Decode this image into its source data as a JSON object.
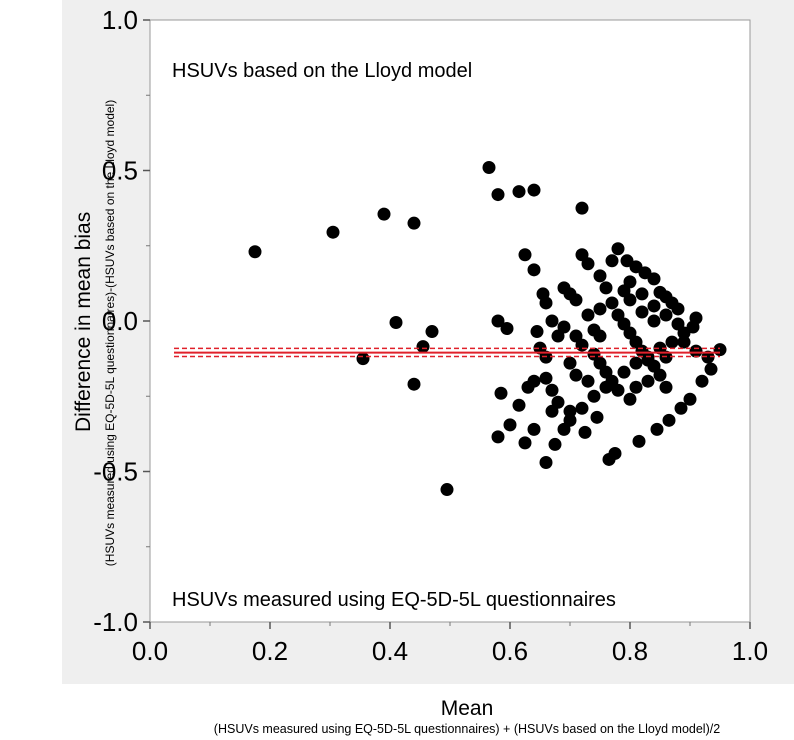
{
  "chart_data": {
    "type": "scatter",
    "title": "",
    "xlabel": "Mean",
    "xlabel_sub": "(HSUVs measured using EQ-5D-5L questionnaires) + (HSUVs based on the Lloyd model)/2",
    "ylabel": "Difference in mean bias",
    "ylabel_sub": "(HSUVs measured using EQ-5D-5L questionnaires)-(HSUVs based on the Lloyd model)",
    "xlim": [
      0.0,
      1.0
    ],
    "ylim": [
      -1.0,
      1.0
    ],
    "xticks": [
      "0.0",
      "0.2",
      "0.4",
      "0.6",
      "0.8",
      "1.0"
    ],
    "yticks": [
      "1.0",
      "0.5",
      "0.0",
      "-0.5",
      "-1.0"
    ],
    "annotations": [
      "HSUVs based on the Lloyd model",
      "HSUVs measured using EQ-5D-5L questionnaires"
    ],
    "mean_line": {
      "value": -0.105,
      "ci": [
        -0.118,
        -0.091
      ],
      "color": "#e0202a"
    },
    "point_color": "#000000",
    "points": [
      [
        0.175,
        0.23
      ],
      [
        0.305,
        0.295
      ],
      [
        0.39,
        0.355
      ],
      [
        0.44,
        0.325
      ],
      [
        0.355,
        -0.125
      ],
      [
        0.41,
        -0.005
      ],
      [
        0.455,
        -0.085
      ],
      [
        0.47,
        -0.035
      ],
      [
        0.44,
        -0.21
      ],
      [
        0.495,
        -0.56
      ],
      [
        0.565,
        0.51
      ],
      [
        0.58,
        0.42
      ],
      [
        0.615,
        0.43
      ],
      [
        0.64,
        0.435
      ],
      [
        0.72,
        0.375
      ],
      [
        0.58,
        0.0
      ],
      [
        0.595,
        -0.025
      ],
      [
        0.625,
        0.22
      ],
      [
        0.64,
        0.17
      ],
      [
        0.655,
        0.09
      ],
      [
        0.66,
        0.06
      ],
      [
        0.585,
        -0.24
      ],
      [
        0.615,
        -0.28
      ],
      [
        0.63,
        -0.22
      ],
      [
        0.64,
        -0.2
      ],
      [
        0.645,
        -0.035
      ],
      [
        0.65,
        -0.09
      ],
      [
        0.58,
        -0.385
      ],
      [
        0.6,
        -0.345
      ],
      [
        0.625,
        -0.405
      ],
      [
        0.64,
        -0.36
      ],
      [
        0.66,
        -0.47
      ],
      [
        0.675,
        -0.41
      ],
      [
        0.66,
        -0.19
      ],
      [
        0.67,
        -0.3
      ],
      [
        0.68,
        -0.27
      ],
      [
        0.69,
        -0.36
      ],
      [
        0.7,
        -0.33
      ],
      [
        0.69,
        0.11
      ],
      [
        0.7,
        0.09
      ],
      [
        0.71,
        0.07
      ],
      [
        0.72,
        0.22
      ],
      [
        0.73,
        0.19
      ],
      [
        0.75,
        0.15
      ],
      [
        0.77,
        0.2
      ],
      [
        0.78,
        0.24
      ],
      [
        0.795,
        0.2
      ],
      [
        0.81,
        0.18
      ],
      [
        0.825,
        0.16
      ],
      [
        0.84,
        0.14
      ],
      [
        0.85,
        0.095
      ],
      [
        0.86,
        0.08
      ],
      [
        0.87,
        0.06
      ],
      [
        0.88,
        0.04
      ],
      [
        0.67,
        0.0
      ],
      [
        0.69,
        -0.02
      ],
      [
        0.71,
        -0.05
      ],
      [
        0.72,
        -0.08
      ],
      [
        0.74,
        -0.11
      ],
      [
        0.75,
        -0.14
      ],
      [
        0.76,
        -0.17
      ],
      [
        0.77,
        -0.2
      ],
      [
        0.78,
        -0.23
      ],
      [
        0.8,
        -0.26
      ],
      [
        0.765,
        -0.46
      ],
      [
        0.775,
        -0.44
      ],
      [
        0.815,
        -0.4
      ],
      [
        0.845,
        -0.36
      ],
      [
        0.865,
        -0.33
      ],
      [
        0.885,
        -0.29
      ],
      [
        0.9,
        -0.26
      ],
      [
        0.92,
        -0.2
      ],
      [
        0.935,
        -0.16
      ],
      [
        0.95,
        -0.095
      ],
      [
        0.7,
        -0.3
      ],
      [
        0.72,
        -0.29
      ],
      [
        0.74,
        -0.25
      ],
      [
        0.76,
        -0.22
      ],
      [
        0.725,
        -0.37
      ],
      [
        0.745,
        -0.32
      ],
      [
        0.79,
        -0.17
      ],
      [
        0.81,
        -0.14
      ],
      [
        0.83,
        -0.12
      ],
      [
        0.85,
        -0.09
      ],
      [
        0.87,
        -0.07
      ],
      [
        0.89,
        -0.04
      ],
      [
        0.905,
        -0.02
      ],
      [
        0.91,
        0.01
      ],
      [
        0.73,
        0.02
      ],
      [
        0.75,
        0.04
      ],
      [
        0.77,
        0.06
      ],
      [
        0.79,
        0.1
      ],
      [
        0.8,
        0.13
      ],
      [
        0.82,
        0.09
      ],
      [
        0.84,
        0.05
      ],
      [
        0.86,
        0.02
      ],
      [
        0.88,
        -0.01
      ],
      [
        0.89,
        -0.07
      ],
      [
        0.91,
        -0.1
      ],
      [
        0.93,
        -0.12
      ],
      [
        0.78,
        0.02
      ],
      [
        0.79,
        -0.01
      ],
      [
        0.8,
        -0.04
      ],
      [
        0.81,
        -0.07
      ],
      [
        0.82,
        -0.1
      ],
      [
        0.83,
        -0.13
      ],
      [
        0.84,
        -0.15
      ],
      [
        0.85,
        -0.18
      ],
      [
        0.86,
        -0.22
      ],
      [
        0.76,
        0.11
      ],
      [
        0.74,
        -0.03
      ],
      [
        0.7,
        -0.14
      ],
      [
        0.68,
        -0.05
      ],
      [
        0.66,
        -0.12
      ],
      [
        0.67,
        -0.23
      ],
      [
        0.71,
        -0.18
      ],
      [
        0.73,
        -0.2
      ],
      [
        0.75,
        -0.05
      ],
      [
        0.8,
        0.07
      ],
      [
        0.82,
        0.03
      ],
      [
        0.84,
        0.0
      ],
      [
        0.83,
        -0.2
      ],
      [
        0.81,
        -0.22
      ],
      [
        0.86,
        -0.12
      ]
    ]
  }
}
